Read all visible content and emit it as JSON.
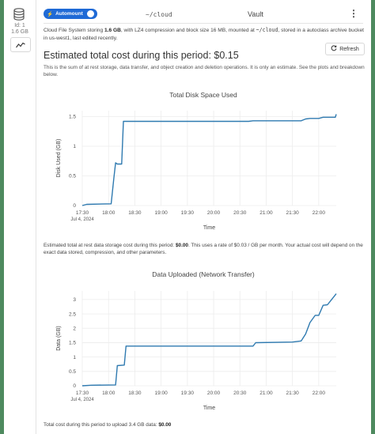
{
  "sidebar": {
    "id_label": "Id: 1",
    "size": "1.6 GB",
    "db_icon": "database-icon",
    "chart_icon": "chart-line-icon"
  },
  "header": {
    "automount_label": "Automount",
    "path": "~/cloud",
    "vault": "Vault",
    "menu_icon": "kebab-menu-icon"
  },
  "description": {
    "prefix": "Cloud File System storing ",
    "size": "1.6 GB",
    "middle": ", with LZ4 compression and block size 16 MB, mounted at ",
    "mount": "~/cloud",
    "suffix": ", stored in a autoclass archive bucket in us-west1, last edited recently."
  },
  "refresh_label": "Refresh",
  "cost_title": "Estimated total cost during this period: $0.15",
  "cost_subtitle": "This is the sum of at rest storage, data transfer, and object creation and deletion operations. It is only an estimate. See the plots and breakdown below.",
  "storage_note": {
    "prefix": "Estimated total at rest data storage cost during this period: ",
    "amount": "$0.00",
    "suffix": ". This uses a rate of $0.03 / GB per month. Your actual cost will depend on the exact data stored, compression, and other parameters."
  },
  "upload_note": {
    "prefix": "Total cost during this period to upload 3.4 GB data: ",
    "amount": "$0.00"
  },
  "colors": {
    "line": "#2f7ab0",
    "accent": "#1f6ad6",
    "border": "#4e8a5f"
  },
  "chart_data": [
    {
      "type": "line",
      "title": "Total Disk Space Used",
      "xlabel": "Time",
      "ylabel": "Disk Used (GB)",
      "x_ticks": [
        "17:30",
        "18:00",
        "18:30",
        "19:00",
        "19:30",
        "20:00",
        "20:30",
        "21:00",
        "21:30",
        "22:00"
      ],
      "x_date_label": "Jul 4, 2024",
      "x_range_minutes": [
        0,
        290
      ],
      "ylim": [
        0,
        1.6
      ],
      "y_ticks": [
        0,
        0.5,
        1,
        1.5
      ],
      "x": [
        0,
        5,
        33,
        36,
        38,
        40,
        45,
        47,
        50,
        100,
        150,
        190,
        195,
        250,
        255,
        260,
        270,
        275,
        289,
        290
      ],
      "y": [
        0,
        0.02,
        0.03,
        0.45,
        0.72,
        0.7,
        0.7,
        1.42,
        1.42,
        1.42,
        1.42,
        1.42,
        1.43,
        1.43,
        1.46,
        1.47,
        1.47,
        1.49,
        1.49,
        1.54
      ]
    },
    {
      "type": "line",
      "title": "Data Uploaded (Network Transfer)",
      "xlabel": "Time",
      "ylabel": "Data (GB)",
      "x_ticks": [
        "17:30",
        "18:00",
        "18:30",
        "19:00",
        "19:30",
        "20:00",
        "20:30",
        "21:00",
        "21:30",
        "22:00"
      ],
      "x_date_label": "Jul 4, 2024",
      "x_range_minutes": [
        0,
        290
      ],
      "ylim": [
        0,
        3.3
      ],
      "y_ticks": [
        0,
        0.5,
        1,
        1.5,
        2,
        2.5,
        3
      ],
      "x": [
        0,
        10,
        38,
        40,
        48,
        50,
        55,
        100,
        150,
        195,
        198,
        240,
        250,
        255,
        260,
        266,
        270,
        275,
        280,
        290
      ],
      "y": [
        0,
        0.02,
        0.03,
        0.7,
        0.72,
        1.38,
        1.38,
        1.38,
        1.38,
        1.38,
        1.5,
        1.52,
        1.56,
        1.8,
        2.2,
        2.45,
        2.45,
        2.8,
        2.82,
        3.2
      ]
    }
  ]
}
